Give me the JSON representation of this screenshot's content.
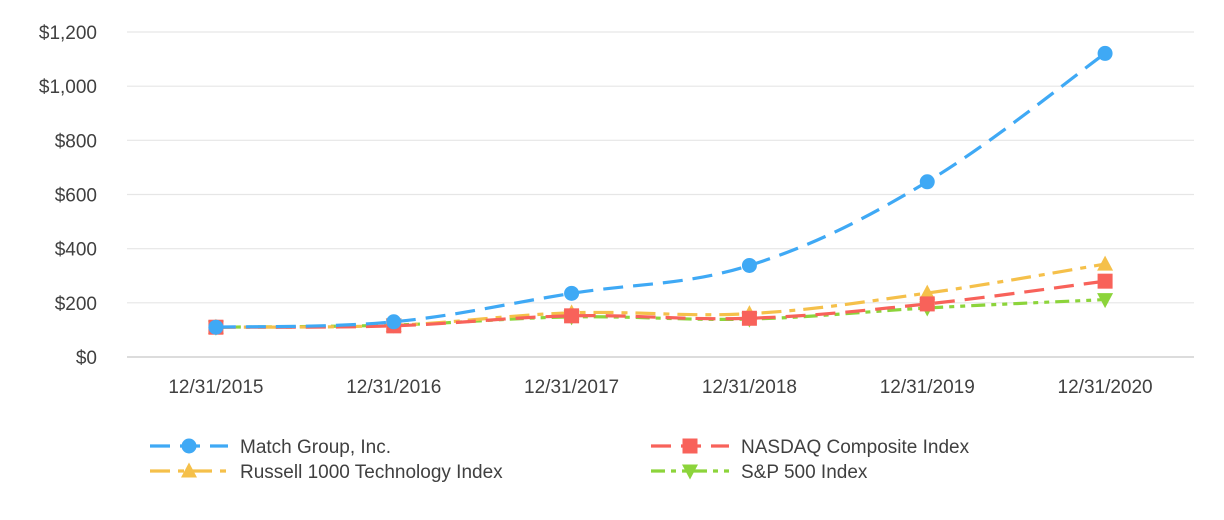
{
  "chart_data": {
    "type": "line",
    "title": "",
    "xlabel": "",
    "ylabel": "",
    "categories": [
      "12/31/2015",
      "12/31/2016",
      "12/31/2017",
      "12/31/2018",
      "12/31/2019",
      "12/31/2020"
    ],
    "ylim": [
      0,
      1200
    ],
    "yticks": [
      0,
      200,
      400,
      600,
      800,
      1000,
      1200
    ],
    "ytick_labels": [
      "$0",
      "$200",
      "$400",
      "$600",
      "$800",
      "$1,000",
      "$1,200"
    ],
    "grid": true,
    "legend_position": "bottom",
    "series": [
      {
        "name": "Match Group, Inc.",
        "values": [
          110,
          130,
          235,
          338,
          647,
          1121
        ],
        "color": "#3fa9f5",
        "marker": "circle",
        "dash": "dashed"
      },
      {
        "name": "NASDAQ Composite Index",
        "values": [
          110,
          115,
          152,
          143,
          196,
          280
        ],
        "color": "#f8625a",
        "marker": "square",
        "dash": "dashed"
      },
      {
        "name": "Russell 1000 Technology Index",
        "values": [
          110,
          117,
          163,
          160,
          236,
          343
        ],
        "color": "#f5c04a",
        "marker": "triangle-up",
        "dash": "dashdot"
      },
      {
        "name": "S&P 500 Index",
        "values": [
          110,
          118,
          148,
          140,
          181,
          212
        ],
        "color": "#8cd43b",
        "marker": "triangle-down",
        "dash": "dashdotdot"
      }
    ]
  }
}
